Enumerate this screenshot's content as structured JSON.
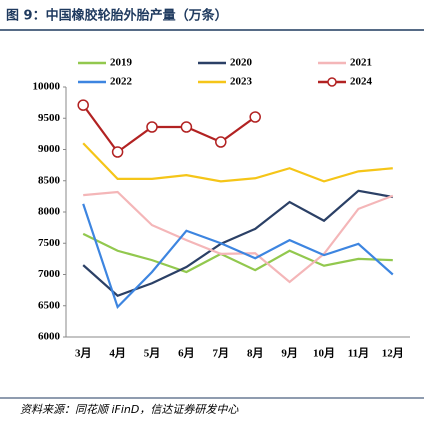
{
  "chart_data": {
    "type": "line",
    "title": "图 9：中国橡胶轮胎外胎产量（万条）",
    "source": "资料来源：同花顺 iFinD，信达证券研发中心",
    "categories": [
      "3月",
      "4月",
      "5月",
      "6月",
      "7月",
      "8月",
      "9月",
      "10月",
      "11月",
      "12月"
    ],
    "ylim": [
      6000,
      10000
    ],
    "yticks": [
      6000,
      6500,
      7000,
      7500,
      8000,
      8500,
      9000,
      9500,
      10000
    ],
    "series": [
      {
        "name": "2019",
        "color": "#92c84e",
        "values": [
          7650,
          7380,
          7230,
          7040,
          7330,
          7070,
          7380,
          7140,
          7250,
          7230
        ]
      },
      {
        "name": "2020",
        "color": "#2b4066",
        "values": [
          7150,
          6660,
          6860,
          7120,
          7490,
          7730,
          8160,
          7860,
          8340,
          8240
        ]
      },
      {
        "name": "2021",
        "color": "#f4b6b8",
        "values": [
          8270,
          8320,
          7790,
          7550,
          7330,
          7340,
          6880,
          7330,
          8050,
          8260
        ]
      },
      {
        "name": "2022",
        "color": "#3d85e0",
        "values": [
          8130,
          6480,
          7040,
          7700,
          7500,
          7260,
          7550,
          7310,
          7490,
          7000
        ]
      },
      {
        "name": "2023",
        "color": "#f5c518",
        "values": [
          9100,
          8530,
          8530,
          8590,
          8490,
          8540,
          8700,
          8490,
          8650,
          8700
        ]
      },
      {
        "name": "2024",
        "color": "#b22222",
        "markers": true,
        "values": [
          9710,
          8960,
          9360,
          9360,
          9120,
          9520,
          null,
          null,
          null,
          null
        ]
      }
    ]
  }
}
